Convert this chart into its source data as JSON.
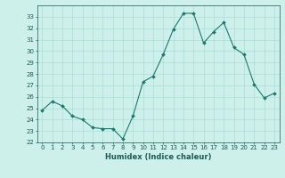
{
  "x": [
    0,
    1,
    2,
    3,
    4,
    5,
    6,
    7,
    8,
    9,
    10,
    11,
    12,
    13,
    14,
    15,
    16,
    17,
    18,
    19,
    20,
    21,
    22,
    23
  ],
  "y": [
    24.8,
    25.6,
    25.2,
    24.3,
    24.0,
    23.3,
    23.2,
    23.2,
    22.3,
    24.3,
    27.3,
    27.8,
    29.7,
    31.9,
    33.3,
    33.3,
    30.7,
    31.7,
    32.5,
    30.3,
    29.7,
    27.1,
    25.9,
    26.3
  ],
  "line_color": "#1a7a6e",
  "marker": "D",
  "marker_size": 2.0,
  "bg_color": "#cef0ea",
  "grid_color": "#aaddd6",
  "xlabel": "Humidex (Indice chaleur)",
  "ylim": [
    22,
    34
  ],
  "xlim": [
    -0.5,
    23.5
  ],
  "yticks": [
    22,
    23,
    24,
    25,
    26,
    27,
    28,
    29,
    30,
    31,
    32,
    33
  ],
  "xticks": [
    0,
    1,
    2,
    3,
    4,
    5,
    6,
    7,
    8,
    9,
    10,
    11,
    12,
    13,
    14,
    15,
    16,
    17,
    18,
    19,
    20,
    21,
    22,
    23
  ],
  "tick_label_color": "#1a5c54",
  "xlabel_color": "#1a5c54",
  "xlabel_fontsize": 6.0,
  "tick_fontsize": 5.0,
  "linewidth": 0.8
}
